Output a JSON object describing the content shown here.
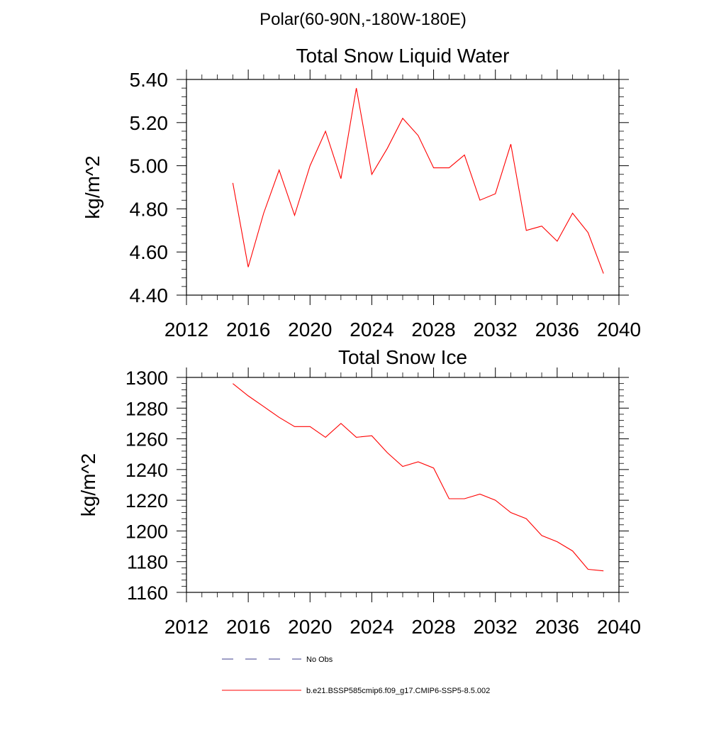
{
  "figure": {
    "region_title": "Polar(60-90N,-180W-180E)",
    "legend": [
      {
        "label": "No Obs",
        "color": "#3c3c8c",
        "dash": "dashed"
      },
      {
        "label": "b.e21.BSSP585cmip6.f09_g17.CMIP6-SSP5-8.5.002",
        "color": "#ff0000",
        "dash": "solid"
      }
    ]
  },
  "chart_data": [
    {
      "type": "line",
      "title": "Total Snow Liquid Water",
      "xlabel": "",
      "ylabel": "kg/m^2",
      "xlim": [
        2012,
        2040
      ],
      "ylim": [
        4.4,
        5.4
      ],
      "xticks": [
        2012,
        2016,
        2020,
        2024,
        2028,
        2032,
        2036,
        2040
      ],
      "yticks": [
        "4.40",
        "4.60",
        "4.80",
        "5.00",
        "5.20",
        "5.40"
      ],
      "grid": false,
      "x": [
        2015,
        2016,
        2017,
        2018,
        2019,
        2020,
        2021,
        2022,
        2023,
        2024,
        2025,
        2026,
        2027,
        2028,
        2029,
        2030,
        2031,
        2032,
        2033,
        2034,
        2035,
        2036,
        2037,
        2038,
        2039
      ],
      "series": [
        {
          "color": "#ff0000",
          "values": [
            4.92,
            4.53,
            4.78,
            4.98,
            4.77,
            5.0,
            5.16,
            4.94,
            5.36,
            4.96,
            5.08,
            5.22,
            5.14,
            4.99,
            4.99,
            5.05,
            4.84,
            4.87,
            5.1,
            4.7,
            4.72,
            4.65,
            4.78,
            4.69,
            4.5
          ]
        }
      ]
    },
    {
      "type": "line",
      "title": "Total Snow Ice",
      "xlabel": "",
      "ylabel": "kg/m^2",
      "xlim": [
        2012,
        2040
      ],
      "ylim": [
        1160,
        1300
      ],
      "xticks": [
        2012,
        2016,
        2020,
        2024,
        2028,
        2032,
        2036,
        2040
      ],
      "yticks": [
        "1160",
        "1180",
        "1200",
        "1220",
        "1240",
        "1260",
        "1280",
        "1300"
      ],
      "grid": false,
      "x": [
        2015,
        2016,
        2017,
        2018,
        2019,
        2020,
        2021,
        2022,
        2023,
        2024,
        2025,
        2026,
        2027,
        2028,
        2029,
        2030,
        2031,
        2032,
        2033,
        2034,
        2035,
        2036,
        2037,
        2038,
        2039
      ],
      "series": [
        {
          "color": "#ff0000",
          "values": [
            1296,
            1288,
            1281,
            1274,
            1268,
            1268,
            1261,
            1270,
            1261,
            1262,
            1251,
            1242,
            1245,
            1241,
            1221,
            1221,
            1224,
            1220,
            1212,
            1208,
            1197,
            1193,
            1187,
            1175,
            1174
          ]
        }
      ]
    }
  ]
}
